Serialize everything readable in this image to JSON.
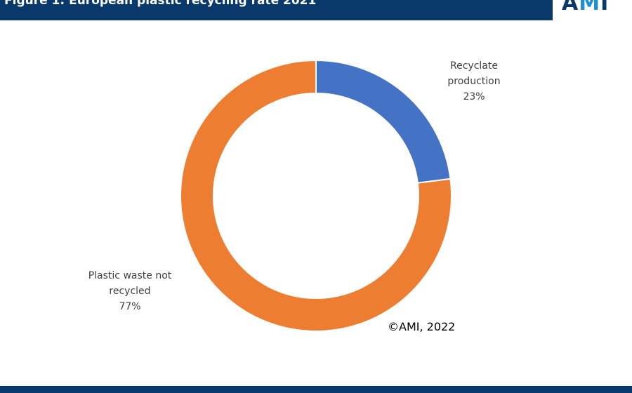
{
  "header": {
    "title": "Figure 1: European plastic recycling rate 2021"
  },
  "logo": {
    "text_a": "A",
    "text_m": "M",
    "text_i": "I"
  },
  "copyright": "©AMI, 2022",
  "colors": {
    "header": "#08396a",
    "recyclate": "#4472c4",
    "waste": "#ed7d31"
  },
  "chart_data": {
    "type": "pie",
    "donut": true,
    "title": "Figure 1: European plastic recycling rate 2021",
    "slices": [
      {
        "name": "Recyclate production",
        "label_lines": [
          "Recyclate",
          "production"
        ],
        "value": 23,
        "value_label": "23%",
        "color": "#4472c4"
      },
      {
        "name": "Plastic waste not recycled",
        "label_lines": [
          "Plastic waste not",
          "recycled"
        ],
        "value": 77,
        "value_label": "77%",
        "color": "#ed7d31"
      }
    ]
  }
}
